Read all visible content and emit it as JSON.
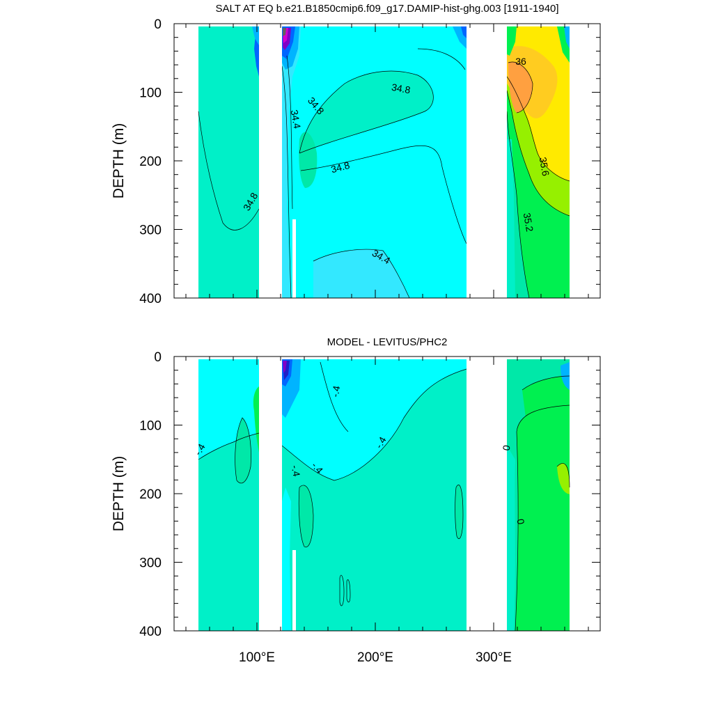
{
  "chart_data": [
    {
      "type": "heatmap",
      "title": "SALT AT EQ b.e21.B1850cmip6.f09_g17.DAMIP-hist-ghg.003 [1911-1940]",
      "ylabel": "DEPTH (m)",
      "xlabel": "",
      "xlim": [
        30,
        390
      ],
      "ylim": [
        400,
        0
      ],
      "x_ticks": [
        100,
        200,
        300
      ],
      "x_tick_labels": [
        "100°E",
        "200°E",
        "300°E"
      ],
      "y_ticks": [
        0,
        100,
        200,
        300,
        400
      ],
      "y_tick_labels": [
        "0",
        "100",
        "200",
        "300",
        "400"
      ],
      "contour_labels": [
        {
          "text": "34.8",
          "x": 52,
          "y": 290
        },
        {
          "text": "34.4",
          "x": 118,
          "y": 145
        },
        {
          "text": "34.8",
          "x": 132,
          "y": 128
        },
        {
          "text": "34.8",
          "x": 175,
          "y": 210
        },
        {
          "text": "34.8",
          "x": 213,
          "y": 95
        },
        {
          "text": "34.4",
          "x": 207,
          "y": 340
        },
        {
          "text": "36",
          "x": 326,
          "y": 57
        },
        {
          "text": "35.6",
          "x": 351,
          "y": 205
        },
        {
          "text": "35.2",
          "x": 347,
          "y": 290
        }
      ]
    },
    {
      "type": "heatmap",
      "title": "MODEL - LEVITUS/PHC2",
      "ylabel": "DEPTH (m)",
      "xlabel": "",
      "xlim": [
        30,
        390
      ],
      "ylim": [
        400,
        0
      ],
      "x_ticks": [
        100,
        200,
        300
      ],
      "x_tick_labels": [
        "100°E",
        "200°E",
        "300°E"
      ],
      "y_ticks": [
        0,
        100,
        200,
        300,
        400
      ],
      "y_tick_labels": [
        "0",
        "100",
        "200",
        "300",
        "400"
      ],
      "contour_labels": [
        {
          "text": "-.4",
          "x": 36,
          "y": 140
        },
        {
          "text": "-.4",
          "x": 118,
          "y": 168
        },
        {
          "text": "-.4",
          "x": 135,
          "y": 163
        },
        {
          "text": "-.4",
          "x": 168,
          "y": 50
        },
        {
          "text": "-.4",
          "x": 199,
          "y": 125
        },
        {
          "text": "0",
          "x": 316,
          "y": 133
        },
        {
          "text": "0",
          "x": 322,
          "y": 240
        }
      ]
    }
  ],
  "colors": {
    "background": "#ffffff",
    "land": "#ffffff",
    "cyan": "#00ffff",
    "aqua_green": "#00f0c8",
    "sea_green": "#00e8a8",
    "light_blue": "#33e8ff",
    "sky_blue": "#00b4ff",
    "blue": "#0066ff",
    "deep_blue": "#2020c8",
    "purple": "#8000c8",
    "magenta": "#d000d0",
    "grey": "#606060",
    "green": "#00f050",
    "yellow_green": "#96f000",
    "yellow": "#ffea00",
    "gold": "#ffcc20",
    "orange": "#ffa040"
  }
}
